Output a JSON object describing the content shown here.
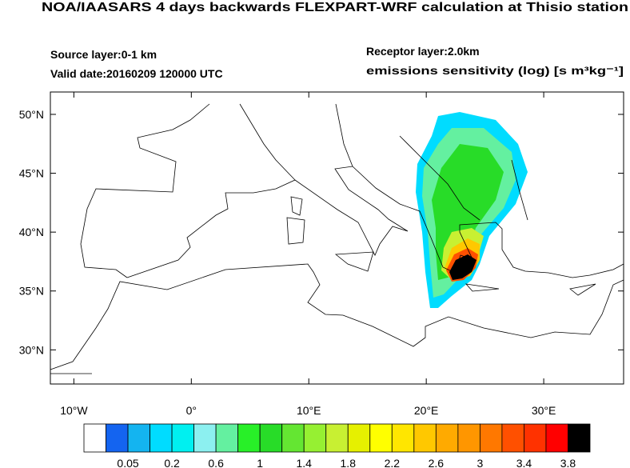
{
  "title": "NOA/IAASARS 4 days backwards FLEXPART-WRF calculation at Thisio station",
  "source_layer": "Source layer:0-1 km",
  "valid_date": "Valid date:20160209 120000 UTC",
  "receptor_layer": "Receptor layer:2.0km",
  "units_label": "emissions sensitivity (log) [s m³kg⁻¹]",
  "map": {
    "xlim": [
      -12,
      36.8
    ],
    "ylim": [
      27.1,
      51.9
    ],
    "xticks": [
      {
        "value": -10,
        "label": "10°W"
      },
      {
        "value": 0,
        "label": "0°"
      },
      {
        "value": 10,
        "label": "10°E"
      },
      {
        "value": 20,
        "label": "20°E"
      },
      {
        "value": 30,
        "label": "30°E"
      }
    ],
    "yticks": [
      {
        "value": 30,
        "label": "30°N"
      },
      {
        "value": 35,
        "label": "35°N"
      },
      {
        "value": 40,
        "label": "40°N"
      },
      {
        "value": 45,
        "label": "45°N"
      },
      {
        "value": 50,
        "label": "50°N"
      }
    ]
  },
  "colorbar": {
    "colors": [
      "#ffffff",
      "#1464f0",
      "#14b4f0",
      "#00dcff",
      "#00f0f0",
      "#8cf0f0",
      "#64f0a0",
      "#28f028",
      "#28dc28",
      "#64e632",
      "#96f032",
      "#c8f032",
      "#e6f000",
      "#ffff00",
      "#ffe600",
      "#ffc800",
      "#ffaa00",
      "#ff9600",
      "#ff7800",
      "#ff5000",
      "#ff3200",
      "#ff0000",
      "#000000"
    ],
    "labels": [
      0.05,
      0.2,
      0.6,
      1,
      1.4,
      1.8,
      2.2,
      2.6,
      3,
      3.4,
      3.8
    ]
  }
}
